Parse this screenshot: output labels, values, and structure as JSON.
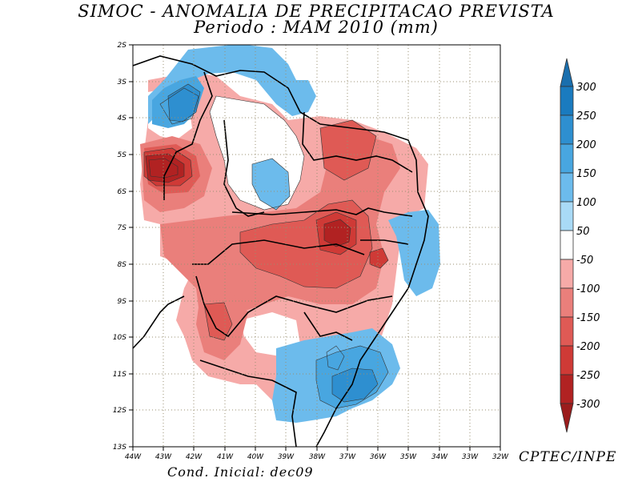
{
  "title_line1": "SIMOC -  ANOMALIA DE PRECIPITACAO PREVISTA",
  "title_line2": "Periodo : MAM 2010 (mm)",
  "credit_right": "CPTEC/INPE",
  "credit_bottom": "Cond. Inicial: dec09",
  "x_ticks": [
    "44W",
    "43W",
    "42W",
    "41W",
    "40W",
    "39W",
    "38W",
    "37W",
    "36W",
    "35W",
    "34W",
    "33W",
    "32W"
  ],
  "y_ticks": [
    "2S",
    "3S",
    "4S",
    "5S",
    "6S",
    "7S",
    "8S",
    "9S",
    "10S",
    "11S",
    "12S",
    "13S"
  ],
  "colorbar": {
    "labels": [
      "300",
      "250",
      "200",
      "150",
      "100",
      "50",
      "-50",
      "-100",
      "-150",
      "-200",
      "-250",
      "-300"
    ],
    "colors": [
      "#1a7bbf",
      "#2e8fd0",
      "#48a6e0",
      "#6cbbec",
      "#ffffff",
      "#f6aaa8",
      "#ea7f7b",
      "#df5a55",
      "#cf3a36",
      "#b12222"
    ],
    "top_arrow_color": "#1a6fae",
    "bottom_arrow_color": "#9b1c1c"
  },
  "palette": {
    "neg50": "#f6aaa8",
    "neg100": "#ea7f7b",
    "neg150": "#df5a55",
    "neg200": "#cf3a36",
    "neg250": "#b12222",
    "pos100": "#6cbbec",
    "pos150": "#48a6e0",
    "pos200": "#2e8fd0",
    "pos250": "#1a7bbf"
  }
}
